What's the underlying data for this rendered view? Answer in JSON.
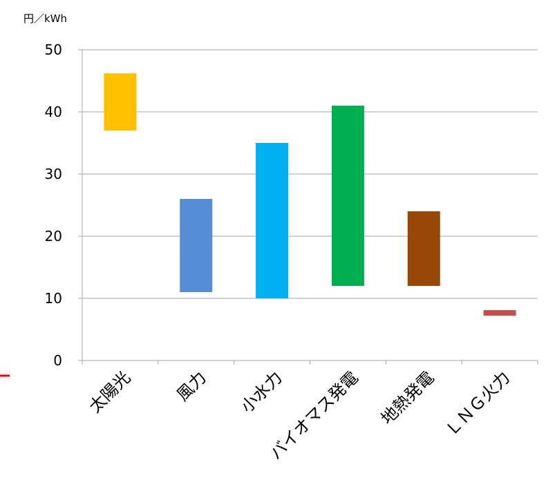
{
  "chart_data": {
    "type": "bar",
    "subtype": "floating-range",
    "ylabel": "円／kWh",
    "ylim": [
      0,
      50
    ],
    "yticks": [
      0,
      10,
      20,
      30,
      40,
      50
    ],
    "grid": true,
    "categories": [
      "太陽光",
      "風力",
      "小水力",
      "バイオマス発電",
      "地熱発電",
      "ＬＮＧ火力"
    ],
    "ranges": [
      {
        "low": 37,
        "high": 46.2
      },
      {
        "low": 11,
        "high": 26
      },
      {
        "low": 10,
        "high": 35
      },
      {
        "low": 12,
        "high": 41
      },
      {
        "low": 12,
        "high": 24
      },
      {
        "low": 7.2,
        "high": 8.1
      }
    ],
    "colors": [
      "#FFC000",
      "#558ED5",
      "#00B0F0",
      "#00B050",
      "#974706",
      "#C0504D"
    ]
  }
}
